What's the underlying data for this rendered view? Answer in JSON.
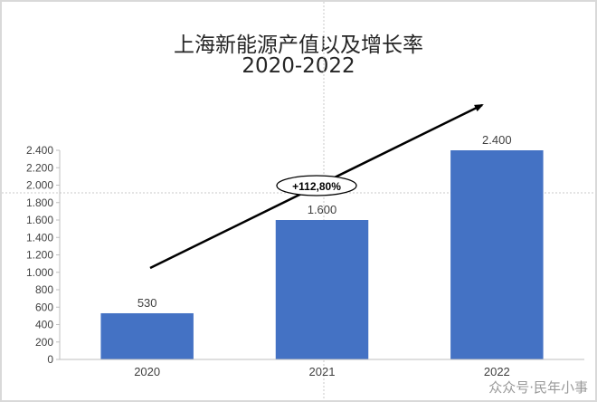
{
  "chart_data": {
    "type": "bar",
    "title": "上海新能源产值以及增长率",
    "subtitle": "2020-2022",
    "categories": [
      "2020",
      "2021",
      "2022"
    ],
    "values": [
      530,
      1600,
      2400
    ],
    "value_labels": [
      "530",
      "1.600",
      "2.400"
    ],
    "ylim": [
      0,
      2400
    ],
    "y_ticks": [
      0,
      200,
      400,
      600,
      800,
      1000,
      1200,
      1400,
      1600,
      1800,
      2000,
      2200,
      2400
    ],
    "y_tick_labels": [
      "0",
      "200",
      "400",
      "600",
      "800",
      "1.000",
      "1.200",
      "1.400",
      "1.600",
      "1.800",
      "2.000",
      "2.200",
      "2.400"
    ],
    "xlabel": "",
    "ylabel": "",
    "grid": false,
    "legend": "none",
    "bar_color": "#4472c4",
    "annotation": {
      "text": "+112,80%",
      "type": "growth-arrow"
    }
  },
  "watermark": "众众号·民年小事"
}
